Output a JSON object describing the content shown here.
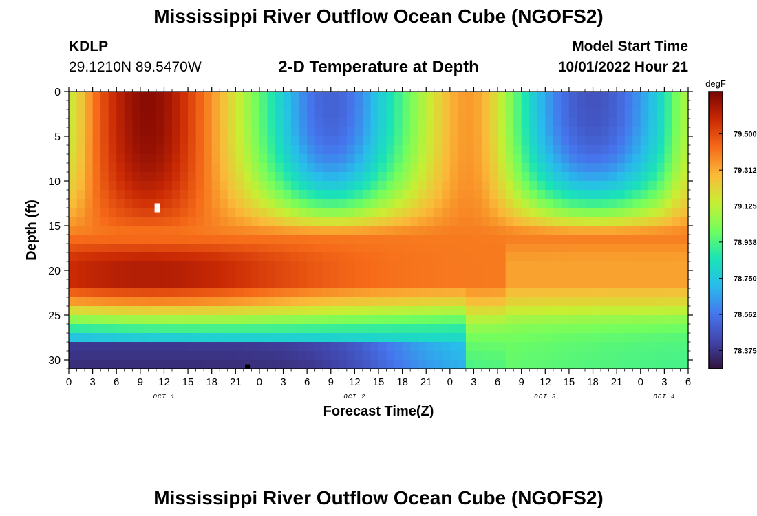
{
  "header": {
    "title_top": "Mississippi River Outflow Ocean Cube (NGOFS2)",
    "station": "KDLP",
    "location": "29.1210N  89.5470W",
    "plot_title": "2-D Temperature at Depth",
    "model_start_label": "Model Start Time",
    "model_start_value": "10/01/2022 Hour 21",
    "title_bottom": "Mississippi River Outflow Ocean Cube (NGOFS2)"
  },
  "chart_data": {
    "type": "heatmap",
    "title": "2-D Temperature at Depth",
    "xlabel": "Forecast Time(Z)",
    "ylabel": "Depth (ft)",
    "x_tick_labels": [
      "0",
      "3",
      "6",
      "9",
      "12",
      "15",
      "18",
      "21",
      "0",
      "3",
      "6",
      "9",
      "12",
      "15",
      "18",
      "21",
      "0",
      "3",
      "6",
      "9",
      "12",
      "15",
      "18",
      "21",
      "0",
      "3",
      "6"
    ],
    "x_day_labels": [
      {
        "label": "OCT 1",
        "at_tick": 4
      },
      {
        "label": "OCT 2",
        "at_tick": 12
      },
      {
        "label": "OCT 3",
        "at_tick": 20
      },
      {
        "label": "OCT 4",
        "at_tick": 25
      }
    ],
    "x_range_hours": [
      0,
      78
    ],
    "y_range_ft": [
      0,
      31
    ],
    "y_ticks": [
      0,
      5,
      10,
      15,
      20,
      25,
      30
    ],
    "y_inverted": true,
    "colorbar": {
      "unit": "degF",
      "tick_labels": [
        "79.500",
        "79.312",
        "79.125",
        "78.938",
        "78.750",
        "78.562",
        "78.375"
      ],
      "range": [
        78.28,
        79.72
      ]
    },
    "colormap_stops": [
      {
        "v": 0.0,
        "color": "#30123b"
      },
      {
        "v": 0.1,
        "color": "#4145ab"
      },
      {
        "v": 0.2,
        "color": "#4675ed"
      },
      {
        "v": 0.3,
        "color": "#28bceb"
      },
      {
        "v": 0.4,
        "color": "#1ae4b6"
      },
      {
        "v": 0.5,
        "color": "#72fe5e"
      },
      {
        "v": 0.6,
        "color": "#c7ef34"
      },
      {
        "v": 0.7,
        "color": "#faba39"
      },
      {
        "v": 0.8,
        "color": "#f66b19"
      },
      {
        "v": 0.9,
        "color": "#cb2a04"
      },
      {
        "v": 1.0,
        "color": "#7a0403"
      }
    ]
  }
}
